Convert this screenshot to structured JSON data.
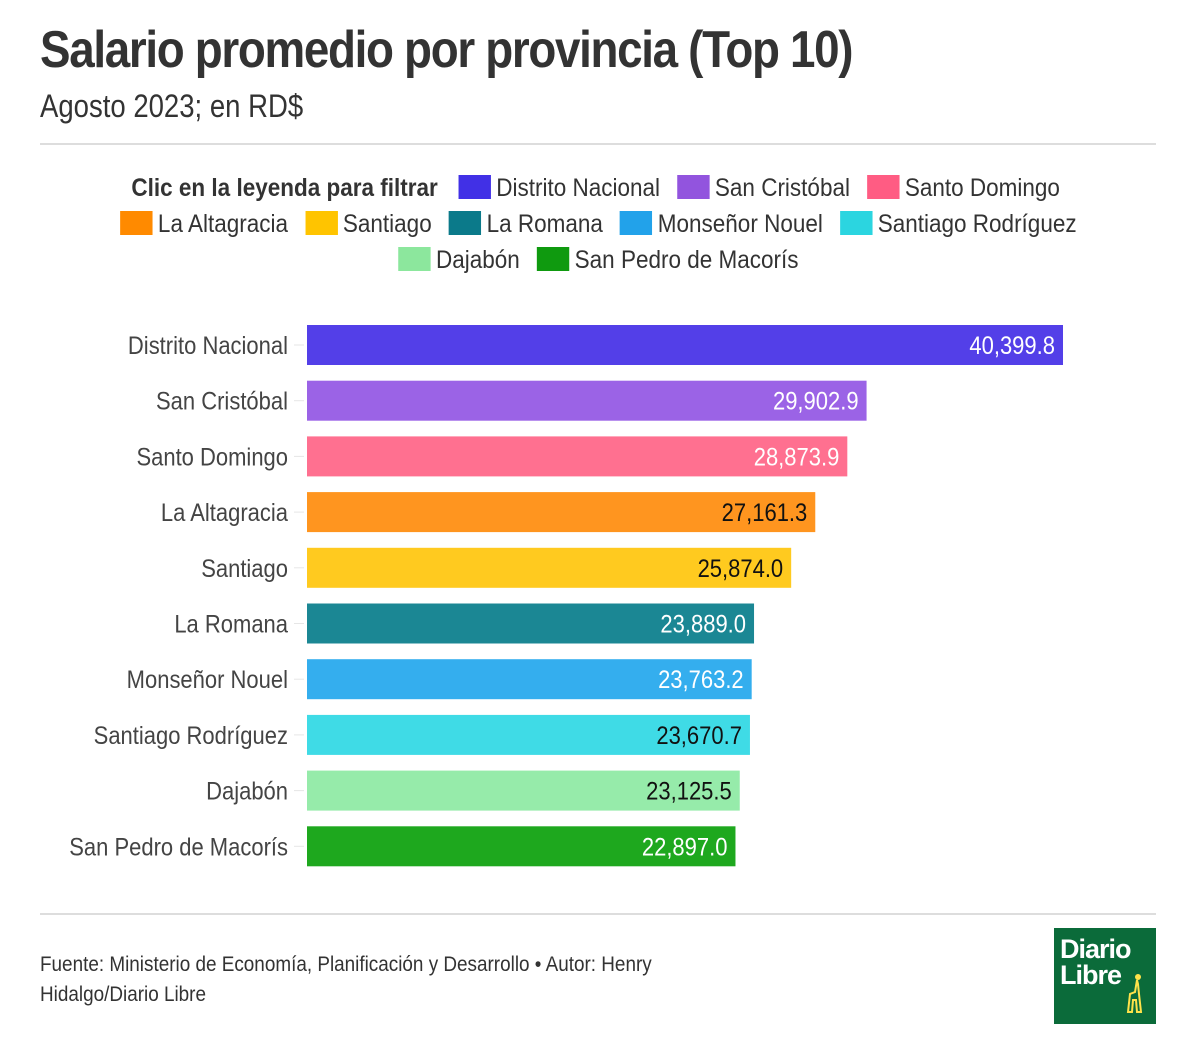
{
  "header": {
    "title": "Salario promedio por provincia (Top 10)",
    "subtitle": "Agosto 2023; en RD$"
  },
  "legend": {
    "title": "Clic en la leyenda para filtrar",
    "items": [
      {
        "label": "Distrito Nacional",
        "color": "#4130e6"
      },
      {
        "label": "San Cristóbal",
        "color": "#9254de"
      },
      {
        "label": "Santo Domingo",
        "color": "#ff5c83"
      },
      {
        "label": "La Altagracia",
        "color": "#ff8a00"
      },
      {
        "label": "Santiago",
        "color": "#ffc400"
      },
      {
        "label": "La Romana",
        "color": "#0b7a8a"
      },
      {
        "label": "Monseñor Nouel",
        "color": "#22a2ea"
      },
      {
        "label": "Santiago Rodríguez",
        "color": "#2bd5e0"
      },
      {
        "label": "Dajabón",
        "color": "#8ce79d"
      },
      {
        "label": "San Pedro de Macorís",
        "color": "#0f9a0f"
      }
    ]
  },
  "chart_data": {
    "type": "bar",
    "orientation": "horizontal",
    "title": "Salario promedio por provincia (Top 10)",
    "subtitle": "Agosto 2023; en RD$",
    "xlabel": "",
    "ylabel": "",
    "categories": [
      "Distrito Nacional",
      "San Cristóbal",
      "Santo Domingo",
      "La Altagracia",
      "Santiago",
      "La Romana",
      "Monseñor Nouel",
      "Santiago Rodríguez",
      "Dajabón",
      "San Pedro de Macorís"
    ],
    "values": [
      40399.8,
      29902.9,
      28873.9,
      27161.3,
      25874.0,
      23889.0,
      23763.2,
      23670.7,
      23125.5,
      22897.0
    ],
    "value_labels": [
      "40,399.8",
      "29,902.9",
      "28,873.9",
      "27,161.3",
      "25,874.0",
      "23,889.0",
      "23,763.2",
      "23,670.7",
      "23,125.5",
      "22,897.0"
    ],
    "bar_colors": [
      "#533fe8",
      "#9b63e6",
      "#ff7090",
      "#ff951f",
      "#ffca1f",
      "#1b8794",
      "#34aeee",
      "#3fdbe6",
      "#96ebaa",
      "#1ea81e"
    ],
    "label_colors": [
      "#ffffff",
      "#ffffff",
      "#ffffff",
      "#111111",
      "#111111",
      "#ffffff",
      "#ffffff",
      "#111111",
      "#111111",
      "#ffffff"
    ],
    "xlim": [
      0,
      40399.8
    ],
    "grid": false,
    "legend_position": "top"
  },
  "footer": {
    "source": "Fuente: Ministerio de Economía, Planificación y Desarrollo • Autor: Henry Hidalgo/Diario Libre"
  },
  "logo": {
    "line1": "Diario",
    "line2": "Libre"
  }
}
